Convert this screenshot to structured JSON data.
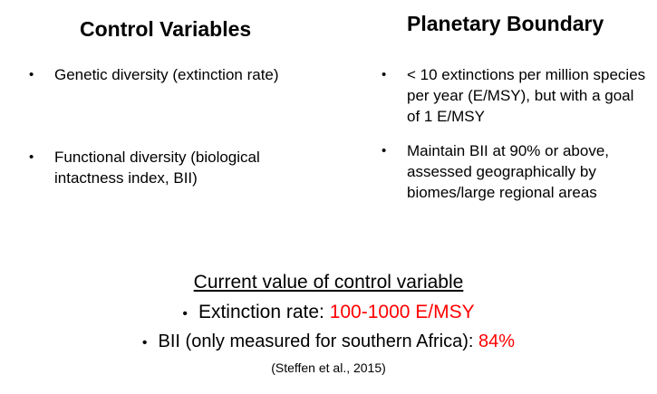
{
  "headings": {
    "left": "Control Variables",
    "right": "Planetary Boundary"
  },
  "bullet_symbol": "•",
  "control_variables": [
    "Genetic diversity (extinction rate)",
    "Functional diversity (biological intactness index, BII)"
  ],
  "planetary_boundary": [
    "< 10 extinctions per million species per year (E/MSY), but with a goal of 1 E/MSY",
    "Maintain BII at 90% or above, assessed geographically by biomes/large regional areas"
  ],
  "current_value": {
    "title": "Current value of control variable",
    "items": [
      {
        "label": "Extinction rate: ",
        "value": "100-1000 E/MSY"
      },
      {
        "label": "BII (only measured for southern Africa): ",
        "value": "84%"
      }
    ],
    "citation": "(Steffen et al., 2015)"
  },
  "colors": {
    "highlight": "#ff0000",
    "text": "#000000",
    "background": "#ffffff"
  }
}
